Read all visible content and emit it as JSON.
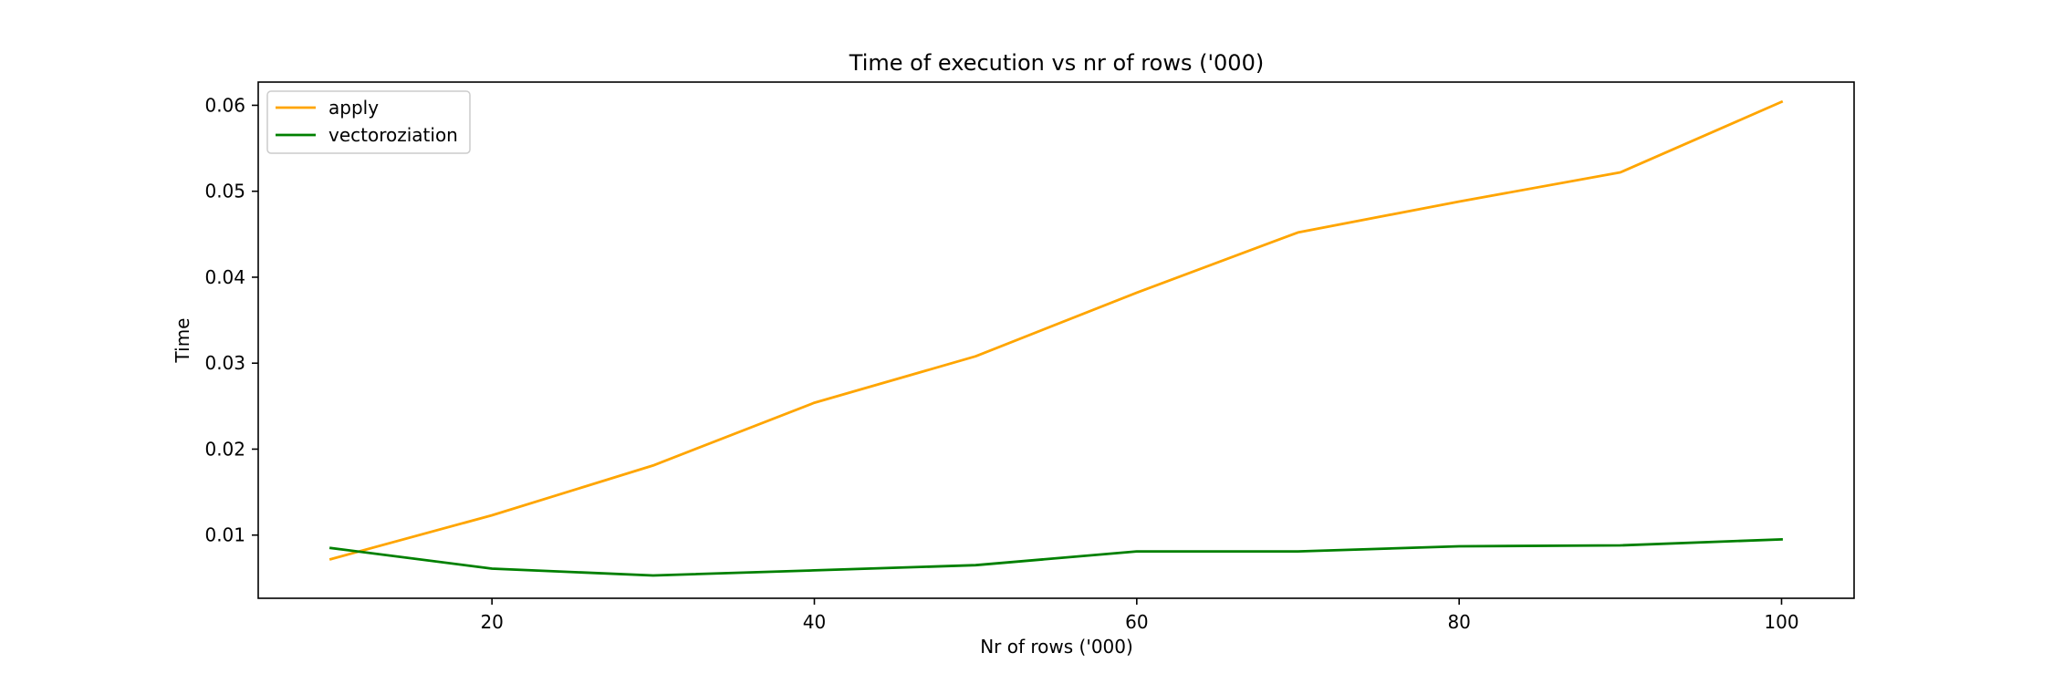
{
  "chart_data": {
    "type": "line",
    "title": "Time of execution vs nr of rows ('000)",
    "xlabel": "Nr of rows ('000)",
    "ylabel": "Time",
    "x": [
      10,
      20,
      30,
      40,
      50,
      60,
      70,
      80,
      90,
      100
    ],
    "xlim": [
      5.5,
      104.5
    ],
    "ylim": [
      0.00265,
      0.0627
    ],
    "xticks": [
      20,
      40,
      60,
      80,
      100
    ],
    "xtick_labels": [
      "20",
      "40",
      "60",
      "80",
      "100"
    ],
    "yticks": [
      0.01,
      0.02,
      0.03,
      0.04,
      0.05,
      0.06
    ],
    "ytick_labels": [
      "0.01",
      "0.02",
      "0.03",
      "0.04",
      "0.05",
      "0.06"
    ],
    "grid": false,
    "legend_position": "top-left",
    "series": [
      {
        "name": "apply",
        "color": "#ffa500",
        "values": [
          0.0072,
          0.0123,
          0.0181,
          0.0254,
          0.0308,
          0.0382,
          0.0452,
          0.0488,
          0.0522,
          0.0604
        ]
      },
      {
        "name": "vectoroziation",
        "color": "#008000",
        "values": [
          0.0085,
          0.0061,
          0.0053,
          0.0059,
          0.0065,
          0.0081,
          0.0081,
          0.0087,
          0.0088,
          0.0095
        ]
      }
    ]
  }
}
